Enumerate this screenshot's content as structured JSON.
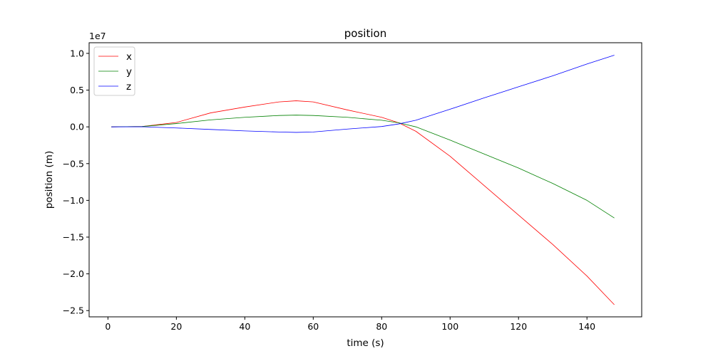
{
  "chart_data": {
    "type": "line",
    "title": "position",
    "xlabel": "time (s)",
    "ylabel": "position (m)",
    "offset_text": "1e7",
    "xlim": [
      -5.5,
      156
    ],
    "ylim": [
      -25850000.0,
      11450000.0
    ],
    "xticks": [
      0,
      20,
      40,
      60,
      80,
      100,
      120,
      140
    ],
    "xtick_labels": [
      "0",
      "20",
      "40",
      "60",
      "80",
      "100",
      "120",
      "140"
    ],
    "yticks": [
      10000000.0,
      5000000.0,
      0,
      -5000000.0,
      -10000000.0,
      -15000000.0,
      -20000000.0,
      -25000000.0
    ],
    "ytick_labels": [
      "1.0",
      "0.5",
      "0.0",
      "−0.5",
      "−1.0",
      "−1.5",
      "−2.0",
      "−2.5"
    ],
    "grid": false,
    "legend_position": "top-left",
    "x": [
      1,
      10,
      20,
      30,
      40,
      50,
      55,
      60,
      70,
      80,
      85,
      90,
      100,
      110,
      120,
      130,
      140,
      148
    ],
    "series": [
      {
        "name": "x",
        "color": "#ff0000",
        "values": [
          0,
          50000,
          600000,
          1900000,
          2700000,
          3400000,
          3550000,
          3400000,
          2300000,
          1300000,
          550000,
          -600000,
          -4000000,
          -8000000,
          -12000000,
          -16000000,
          -20300000,
          -24200000
        ]
      },
      {
        "name": "y",
        "color": "#008000",
        "values": [
          0,
          50000,
          450000,
          950000,
          1300000,
          1550000,
          1600000,
          1550000,
          1300000,
          900000,
          550000,
          0,
          -1800000,
          -3700000,
          -5600000,
          -7700000,
          -10000000,
          -12400000
        ]
      },
      {
        "name": "z",
        "color": "#0000ff",
        "values": [
          0,
          20000,
          -150000,
          -350000,
          -550000,
          -700000,
          -750000,
          -700000,
          -300000,
          50000,
          400000,
          900000,
          2400000,
          3950000,
          5450000,
          6950000,
          8550000,
          9750000
        ]
      }
    ]
  }
}
